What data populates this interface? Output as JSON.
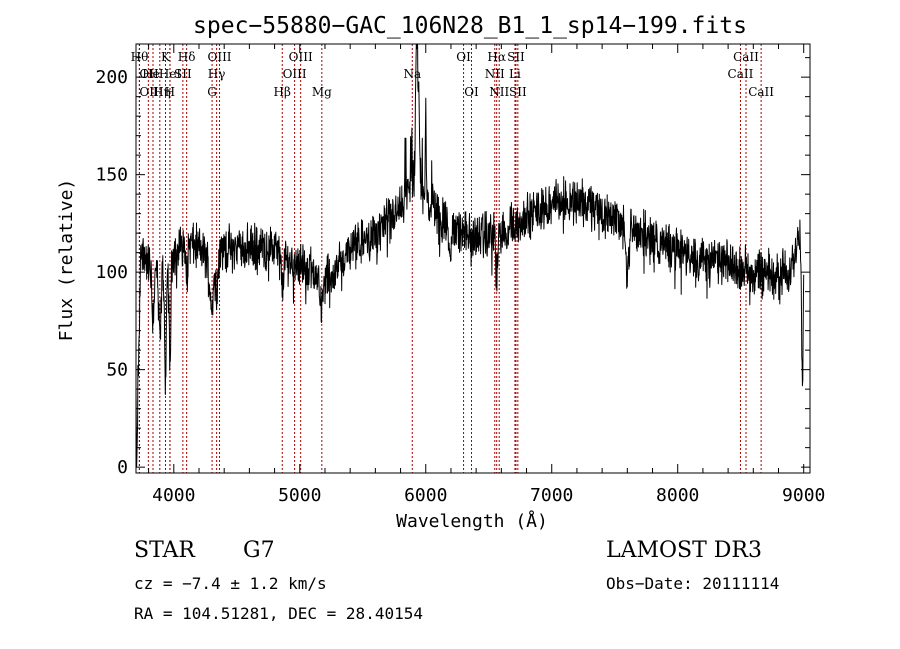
{
  "chart_data": {
    "type": "line",
    "title": "spec−55880−GAC_106N28_B1_1_sp14−199.fits",
    "xlabel": "Wavelength (Å)",
    "ylabel": "Flux (relative)",
    "xlim": [
      3700,
      9050
    ],
    "ylim": [
      -3,
      217
    ],
    "xticks": [
      4000,
      5000,
      6000,
      7000,
      8000,
      9000
    ],
    "yticks": [
      0,
      50,
      100,
      150,
      200
    ],
    "xtick_labels": [
      "4000",
      "5000",
      "6000",
      "7000",
      "8000",
      "9000"
    ],
    "ytick_labels": [
      "0",
      "50",
      "100",
      "150",
      "200"
    ],
    "continuum": [
      {
        "x": 3700,
        "y": 118
      },
      {
        "x": 3800,
        "y": 104
      },
      {
        "x": 3900,
        "y": 102
      },
      {
        "x": 4000,
        "y": 110
      },
      {
        "x": 4100,
        "y": 116
      },
      {
        "x": 4200,
        "y": 112
      },
      {
        "x": 4300,
        "y": 105
      },
      {
        "x": 4400,
        "y": 112
      },
      {
        "x": 4600,
        "y": 113
      },
      {
        "x": 4800,
        "y": 112
      },
      {
        "x": 4900,
        "y": 106
      },
      {
        "x": 5000,
        "y": 105
      },
      {
        "x": 5100,
        "y": 101
      },
      {
        "x": 5200,
        "y": 97
      },
      {
        "x": 5400,
        "y": 111
      },
      {
        "x": 5600,
        "y": 120
      },
      {
        "x": 5800,
        "y": 132
      },
      {
        "x": 5900,
        "y": 150
      },
      {
        "x": 5950,
        "y": 153
      },
      {
        "x": 6000,
        "y": 140
      },
      {
        "x": 6100,
        "y": 130
      },
      {
        "x": 6200,
        "y": 122
      },
      {
        "x": 6400,
        "y": 118
      },
      {
        "x": 6600,
        "y": 120
      },
      {
        "x": 6800,
        "y": 128
      },
      {
        "x": 7000,
        "y": 136
      },
      {
        "x": 7200,
        "y": 137
      },
      {
        "x": 7400,
        "y": 131
      },
      {
        "x": 7600,
        "y": 125
      },
      {
        "x": 7800,
        "y": 117
      },
      {
        "x": 8000,
        "y": 111
      },
      {
        "x": 8200,
        "y": 107
      },
      {
        "x": 8400,
        "y": 104
      },
      {
        "x": 8600,
        "y": 101
      },
      {
        "x": 8800,
        "y": 99
      },
      {
        "x": 8900,
        "y": 103
      },
      {
        "x": 8960,
        "y": 120
      },
      {
        "x": 9000,
        "y": 118
      }
    ],
    "absorption_features": [
      {
        "x": 3705,
        "depth": 110,
        "width": 8
      },
      {
        "x": 3720,
        "depth": 60,
        "width": 12
      },
      {
        "x": 3835,
        "depth": 25,
        "width": 14
      },
      {
        "x": 3889,
        "depth": 35,
        "width": 14
      },
      {
        "x": 3934,
        "depth": 62,
        "width": 10
      },
      {
        "x": 3969,
        "depth": 55,
        "width": 10
      },
      {
        "x": 4102,
        "depth": 12,
        "width": 14
      },
      {
        "x": 4300,
        "depth": 22,
        "width": 22
      },
      {
        "x": 4340,
        "depth": 14,
        "width": 14
      },
      {
        "x": 4861,
        "depth": 14,
        "width": 14
      },
      {
        "x": 5175,
        "depth": 18,
        "width": 16
      },
      {
        "x": 5270,
        "depth": 6,
        "width": 10
      },
      {
        "x": 6190,
        "depth": 18,
        "width": 12
      },
      {
        "x": 6563,
        "depth": 22,
        "width": 12
      },
      {
        "x": 7600,
        "depth": 30,
        "width": 16
      },
      {
        "x": 8880,
        "depth": 12,
        "width": 12
      },
      {
        "x": 8990,
        "depth": 75,
        "width": 8
      }
    ],
    "emission_features": [
      {
        "x": 5925,
        "height": 62,
        "width": 8
      },
      {
        "x": 5935,
        "height": 48,
        "width": 6
      },
      {
        "x": 5945,
        "height": 38,
        "width": 6
      },
      {
        "x": 6000,
        "height": 45,
        "width": 4
      }
    ],
    "reference_lines": [
      {
        "label": "Hθ",
        "x": 3798,
        "row": 0,
        "align": "right"
      },
      {
        "label": "OII",
        "x": 3727,
        "row": 1,
        "align": "left"
      },
      {
        "label": "OIII",
        "x": 3727,
        "row": 2,
        "align": "left"
      },
      {
        "label": "He",
        "x": 3889,
        "row": 1,
        "align": "right"
      },
      {
        "label": "Hη",
        "x": 3835,
        "row": 2,
        "align": "left"
      },
      {
        "label": "K",
        "x": 3934,
        "row": 0,
        "align": "center"
      },
      {
        "label": "HeI",
        "x": 3970,
        "row": 1,
        "align": "center"
      },
      {
        "label": "H",
        "x": 3969,
        "row": 2,
        "align": "center"
      },
      {
        "label": "Hδ",
        "x": 4102,
        "row": 0,
        "align": "center"
      },
      {
        "label": "SII",
        "x": 4072,
        "row": 1,
        "align": "center"
      },
      {
        "label": "OIII",
        "x": 4363,
        "row": 0,
        "align": "center"
      },
      {
        "label": "Hγ",
        "x": 4340,
        "row": 1,
        "align": "center"
      },
      {
        "label": "G",
        "x": 4304,
        "row": 2,
        "align": "center"
      },
      {
        "label": "Hβ",
        "x": 4861,
        "row": 2,
        "align": "center"
      },
      {
        "label": "OIII",
        "x": 5007,
        "row": 0,
        "align": "center"
      },
      {
        "label": "OIII",
        "x": 4959,
        "row": 1,
        "align": "center"
      },
      {
        "label": "Mg",
        "x": 5175,
        "row": 2,
        "align": "center"
      },
      {
        "label": "Na",
        "x": 5893,
        "row": 1,
        "align": "center"
      },
      {
        "label": "OI",
        "x": 6300,
        "row": 0,
        "align": "center"
      },
      {
        "label": "OI",
        "x": 6363,
        "row": 2,
        "align": "center"
      },
      {
        "label": "Hα",
        "x": 6563,
        "row": 0,
        "align": "center"
      },
      {
        "label": "NII",
        "x": 6548,
        "row": 1,
        "align": "center"
      },
      {
        "label": "NII",
        "x": 6583,
        "row": 2,
        "align": "center"
      },
      {
        "label": "SII",
        "x": 6716,
        "row": 0,
        "align": "center"
      },
      {
        "label": "Li",
        "x": 6708,
        "row": 1,
        "align": "center"
      },
      {
        "label": "SII",
        "x": 6731,
        "row": 2,
        "align": "center"
      },
      {
        "label": "CaII",
        "x": 8542,
        "row": 0,
        "align": "center"
      },
      {
        "label": "CaII",
        "x": 8498,
        "row": 1,
        "align": "center"
      },
      {
        "label": "CaII",
        "x": 8662,
        "row": 2,
        "align": "center"
      }
    ],
    "line_color": "#000000",
    "reference_line_color": "#aa0000",
    "noise_amplitude": 9
  },
  "info": {
    "object_class": "STAR",
    "subclass": "G7",
    "survey": "LAMOST DR3",
    "redshift": "cz = −7.4 ± 1.2 km/s",
    "obs_date": "Obs−Date: 20111114",
    "coordinates": "RA = 104.51281, DEC =  28.40154"
  }
}
